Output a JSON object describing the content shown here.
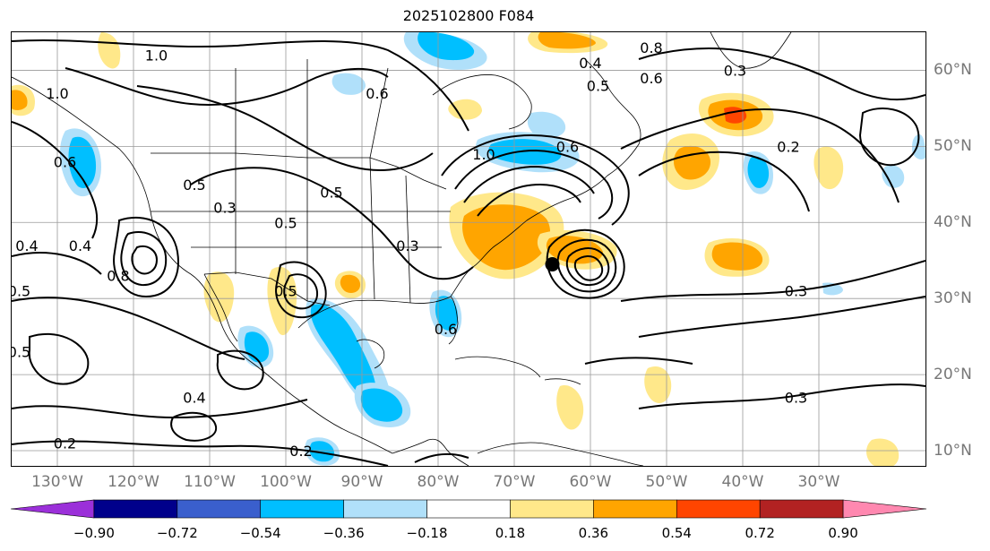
{
  "title": "2025102800 F084",
  "axes": {
    "lon_labels": [
      "130°W",
      "120°W",
      "110°W",
      "100°W",
      "90°W",
      "80°W",
      "70°W",
      "60°W",
      "50°W",
      "40°W",
      "30°W"
    ],
    "lat_labels": [
      "60°N",
      "50°N",
      "40°N",
      "30°N",
      "20°N",
      "10°N"
    ],
    "lon_range": [
      -136,
      -16
    ],
    "lat_range": [
      8,
      65
    ],
    "grid": true
  },
  "colorbar": {
    "ticks": [
      "−0.90",
      "−0.72",
      "−0.54",
      "−0.36",
      "−0.18",
      "0.18",
      "0.36",
      "0.54",
      "0.72",
      "0.90"
    ],
    "colors": [
      "#9b30d9",
      "#00008b",
      "#3a5fcd",
      "#00bfff",
      "#b0e0fa",
      "#ffffff",
      "#ffe88a",
      "#ffa500",
      "#ff4500",
      "#b22222",
      "#ff88b0"
    ],
    "extend": "both"
  },
  "contour_labels": [
    {
      "text": "1.0",
      "lon": -117,
      "lat": 62
    },
    {
      "text": "1.0",
      "lon": -130,
      "lat": 57
    },
    {
      "text": "0.6",
      "lon": -88,
      "lat": 57
    },
    {
      "text": "0.6",
      "lon": -129,
      "lat": 48
    },
    {
      "text": "0.5",
      "lon": -112,
      "lat": 45
    },
    {
      "text": "0.5",
      "lon": -94,
      "lat": 44
    },
    {
      "text": "0.3",
      "lon": -108,
      "lat": 42
    },
    {
      "text": "0.5",
      "lon": -100,
      "lat": 40
    },
    {
      "text": "0.4",
      "lon": -134,
      "lat": 37
    },
    {
      "text": "0.4",
      "lon": -127,
      "lat": 37
    },
    {
      "text": "0.8",
      "lon": -122,
      "lat": 33
    },
    {
      "text": "0.5",
      "lon": -135,
      "lat": 31
    },
    {
      "text": "0.5",
      "lon": -100,
      "lat": 31
    },
    {
      "text": "0.3",
      "lon": -84,
      "lat": 37
    },
    {
      "text": "1.0",
      "lon": -74,
      "lat": 49
    },
    {
      "text": "0.6",
      "lon": -63,
      "lat": 50
    },
    {
      "text": "0.4",
      "lon": -60,
      "lat": 61
    },
    {
      "text": "0.5",
      "lon": -59,
      "lat": 58
    },
    {
      "text": "0.8",
      "lon": -52,
      "lat": 63
    },
    {
      "text": "0.6",
      "lon": -52,
      "lat": 59
    },
    {
      "text": "0.3",
      "lon": -41,
      "lat": 60
    },
    {
      "text": "0.2",
      "lon": -34,
      "lat": 50
    },
    {
      "text": "0.3",
      "lon": -33,
      "lat": 31
    },
    {
      "text": "0.6",
      "lon": -79,
      "lat": 26
    },
    {
      "text": "0.5",
      "lon": -135,
      "lat": 23
    },
    {
      "text": "0.4",
      "lon": -112,
      "lat": 17
    },
    {
      "text": "0.3",
      "lon": -33,
      "lat": 17
    },
    {
      "text": "0.2",
      "lon": -129,
      "lat": 11
    },
    {
      "text": "0.2",
      "lon": -98,
      "lat": 10
    }
  ],
  "storm_marker": {
    "lon": -65,
    "lat": 34.5,
    "name": "storm-center"
  }
}
